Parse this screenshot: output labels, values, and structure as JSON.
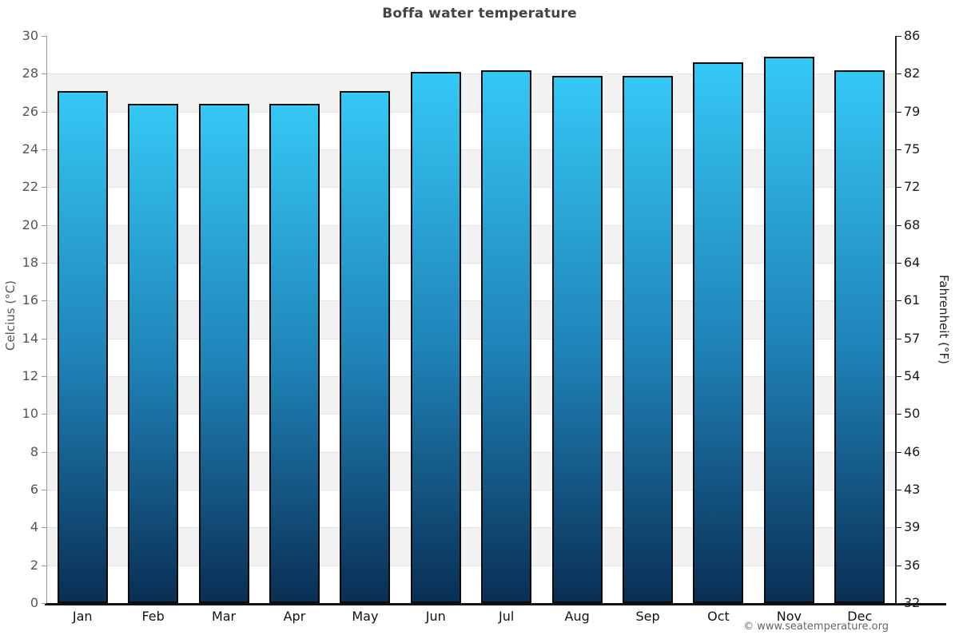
{
  "title": "Boffa water temperature",
  "credit": "© www.seatemperature.org",
  "chart_data": {
    "type": "bar",
    "title": "Boffa water temperature",
    "categories": [
      "Jan",
      "Feb",
      "Mar",
      "Apr",
      "May",
      "Jun",
      "Jul",
      "Aug",
      "Sep",
      "Oct",
      "Nov",
      "Dec"
    ],
    "values": [
      27.1,
      26.4,
      26.4,
      26.4,
      27.1,
      28.1,
      28.2,
      27.9,
      27.9,
      28.6,
      28.9,
      28.2
    ],
    "unit": "°C",
    "ylabel_left": "Celcius (°C)",
    "ylabel_right": "Fahrenheit (°F)",
    "ylim": [
      0,
      30
    ],
    "ytick_step": 2,
    "yticks_left": [
      "30",
      "28",
      "26",
      "24",
      "22",
      "20",
      "18",
      "16",
      "14",
      "12",
      "10",
      "8",
      "6",
      "4",
      "2",
      "0"
    ],
    "yticks_right": [
      "86",
      "82",
      "79",
      "75",
      "72",
      "68",
      "64",
      "61",
      "57",
      "54",
      "50",
      "46",
      "43",
      "39",
      "36",
      "32"
    ],
    "grid": "alternating horizontal bands, line at every 2°C",
    "legend": "none",
    "colors": {
      "bar_gradient_top": "#35c8f5",
      "bar_gradient_mid": "#1f83b8",
      "bar_gradient_bottom": "#0a2f55",
      "bar_border": "#0c0c0c",
      "band_main": "#ffffff",
      "band_alt": "#f2f2f2",
      "gridline": "#e4e4e4",
      "axis_left": "#9a9a9a",
      "axis_right": "#222222",
      "axis_bottom": "#111111",
      "tick_label_left": "#555555",
      "tick_label_right": "#1a1a1a",
      "month_label": "#111111",
      "title": "#444444",
      "credit": "#666666"
    }
  }
}
